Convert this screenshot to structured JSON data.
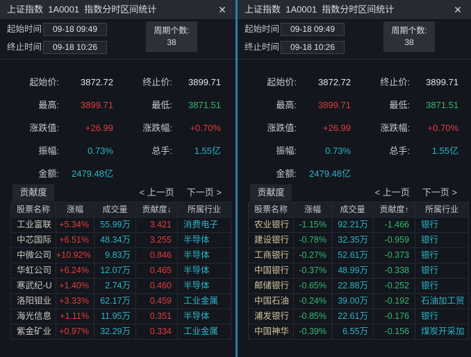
{
  "colors": {
    "white": "#e3e6ea",
    "red": "#e23d3d",
    "green": "#35b873",
    "cyan": "#2bb5c8",
    "divider_blue": "#2f7cb0"
  },
  "panels": [
    {
      "title": "上证指数  1A0001  指数分时区间统计",
      "close_label": "✕",
      "times": {
        "start_label": "起始时间",
        "start_value": "09-18 09:49",
        "end_label": "终止时间",
        "end_value": "09-18 10:26"
      },
      "period": {
        "label": "周期个数:",
        "value": "38"
      },
      "stats": [
        [
          {
            "label": "起始价:",
            "value": "3872.72",
            "color": "white"
          },
          {
            "label": "终止价:",
            "value": "3899.71",
            "color": "white"
          }
        ],
        [
          {
            "label": "最高:",
            "value": "3899.71",
            "color": "red"
          },
          {
            "label": "最低:",
            "value": "3871.51",
            "color": "green"
          }
        ],
        [
          {
            "label": "涨跌值:",
            "value": "+26.99",
            "color": "red"
          },
          {
            "label": "涨跌幅:",
            "value": "+0.70%",
            "color": "red"
          }
        ],
        [
          {
            "label": "振幅:",
            "value": "0.73%",
            "color": "cyan"
          },
          {
            "label": "总手:",
            "value": "1.55亿",
            "color": "cyan"
          }
        ],
        [
          {
            "label": "金额:",
            "value": "2479.48亿",
            "color": "cyan"
          }
        ]
      ],
      "contribution": {
        "tab_label": "贡献度",
        "prev_label": "< 上一页",
        "next_label": "下一页 >"
      },
      "table": {
        "headers": [
          "股票名称",
          "涨幅",
          "成交量",
          "贡献度↓",
          "所属行业"
        ],
        "name_color": "#cac9c3",
        "rows": [
          {
            "name": "工业富联",
            "change": "+5.34%",
            "volume": "55.99万",
            "contribution": "3.421",
            "industry": "消费电子",
            "trend": "up"
          },
          {
            "name": "中芯国际",
            "change": "+6.51%",
            "volume": "48.34万",
            "contribution": "3.255",
            "industry": "半导体",
            "trend": "up"
          },
          {
            "name": "中微公司",
            "change": "+10.92%",
            "volume": "9.83万",
            "contribution": "0.846",
            "industry": "半导体",
            "trend": "up"
          },
          {
            "name": "华虹公司",
            "change": "+6.24%",
            "volume": "12.07万",
            "contribution": "0.465",
            "industry": "半导体",
            "trend": "up"
          },
          {
            "name": "寒武纪-U",
            "change": "+1.40%",
            "volume": "2.74万",
            "contribution": "0.460",
            "industry": "半导体",
            "trend": "up"
          },
          {
            "name": "洛阳钼业",
            "change": "+3.33%",
            "volume": "62.17万",
            "contribution": "0.459",
            "industry": "工业金属",
            "trend": "up"
          },
          {
            "name": "海光信息",
            "change": "+1.11%",
            "volume": "11.95万",
            "contribution": "0.351",
            "industry": "半导体",
            "trend": "up"
          },
          {
            "name": "紫金矿业",
            "change": "+0.97%",
            "volume": "32.29万",
            "contribution": "0.334",
            "industry": "工业金属",
            "trend": "up"
          }
        ]
      }
    },
    {
      "title": "上证指数  1A0001  指数分时区间统计",
      "close_label": "✕",
      "times": {
        "start_label": "起始时间",
        "start_value": "09-18 09:49",
        "end_label": "终止时间",
        "end_value": "09-18 10:26"
      },
      "period": {
        "label": "周期个数:",
        "value": "38"
      },
      "stats": [
        [
          {
            "label": "起始价:",
            "value": "3872.72",
            "color": "white"
          },
          {
            "label": "终止价:",
            "value": "3899.71",
            "color": "white"
          }
        ],
        [
          {
            "label": "最高:",
            "value": "3899.71",
            "color": "red"
          },
          {
            "label": "最低:",
            "value": "3871.51",
            "color": "green"
          }
        ],
        [
          {
            "label": "涨跌值:",
            "value": "+26.99",
            "color": "red"
          },
          {
            "label": "涨跌幅:",
            "value": "+0.70%",
            "color": "red"
          }
        ],
        [
          {
            "label": "振幅:",
            "value": "0.73%",
            "color": "cyan"
          },
          {
            "label": "总手:",
            "value": "1.55亿",
            "color": "cyan"
          }
        ],
        [
          {
            "label": "金额:",
            "value": "2479.48亿",
            "color": "cyan"
          }
        ]
      ],
      "contribution": {
        "tab_label": "贡献度",
        "prev_label": "< 上一页",
        "next_label": "下一页 >"
      },
      "table": {
        "headers": [
          "股票名称",
          "涨幅",
          "成交量",
          "贡献度↑",
          "所属行业"
        ],
        "name_color": "#d2c49e",
        "rows": [
          {
            "name": "农业银行",
            "change": "-1.15%",
            "volume": "92.21万",
            "contribution": "-1.466",
            "industry": "银行",
            "trend": "down"
          },
          {
            "name": "建设银行",
            "change": "-0.78%",
            "volume": "32.35万",
            "contribution": "-0.959",
            "industry": "银行",
            "trend": "down"
          },
          {
            "name": "工商银行",
            "change": "-0.27%",
            "volume": "52.61万",
            "contribution": "-0.373",
            "industry": "银行",
            "trend": "down"
          },
          {
            "name": "中国银行",
            "change": "-0.37%",
            "volume": "48.99万",
            "contribution": "-0.338",
            "industry": "银行",
            "trend": "down"
          },
          {
            "name": "邮储银行",
            "change": "-0.65%",
            "volume": "22.88万",
            "contribution": "-0.252",
            "industry": "银行",
            "trend": "down"
          },
          {
            "name": "中国石油",
            "change": "-0.24%",
            "volume": "39.00万",
            "contribution": "-0.192",
            "industry": "石油加工贸",
            "trend": "down"
          },
          {
            "name": "浦发银行",
            "change": "-0.85%",
            "volume": "22.61万",
            "contribution": "-0.176",
            "industry": "银行",
            "trend": "down"
          },
          {
            "name": "中国神华",
            "change": "-0.39%",
            "volume": "6.55万",
            "contribution": "-0.156",
            "industry": "煤炭开采加",
            "trend": "down"
          }
        ]
      }
    }
  ]
}
